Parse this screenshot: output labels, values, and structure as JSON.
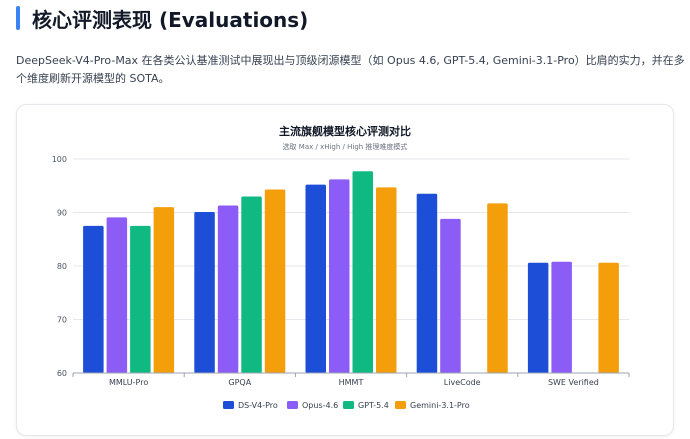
{
  "section": {
    "title": "核心评测表现 (Evaluations)",
    "accent_color": "#3b82f6",
    "description": "DeepSeek-V4-Pro-Max 在各类公认基准测试中展现出与顶级闭源模型（如 Opus 4.6, GPT-5.4, Gemini-3.1-Pro）比肩的实力，并在多个维度刷新开源模型的 SOTA。"
  },
  "chart_data": {
    "type": "bar",
    "title": "主流旗舰模型核心评测对比",
    "subtitle": "选取 Max / xHigh / High 推理难度模式",
    "categories": [
      "MMLU-Pro",
      "GPQA",
      "HMMT",
      "LiveCode",
      "SWE Verified"
    ],
    "ylim": [
      60,
      100
    ],
    "yticks": [
      "60",
      "70",
      "80",
      "90",
      "100"
    ],
    "grid": true,
    "legend_position": "bottom-center",
    "series": [
      {
        "name": "DS-V4-Pro",
        "color": "#1d4ed8",
        "values": [
          87.5,
          90.1,
          95.2,
          93.5,
          80.6
        ]
      },
      {
        "name": "Opus-4.6",
        "color": "#8b5cf6",
        "values": [
          89.1,
          91.3,
          96.2,
          88.8,
          80.8
        ]
      },
      {
        "name": "GPT-5.4",
        "color": "#10b981",
        "values": [
          87.5,
          93.0,
          97.7,
          null,
          null
        ]
      },
      {
        "name": "Gemini-3.1-Pro",
        "color": "#f59e0b",
        "values": [
          91.0,
          94.3,
          94.7,
          91.7,
          80.6
        ]
      }
    ]
  }
}
